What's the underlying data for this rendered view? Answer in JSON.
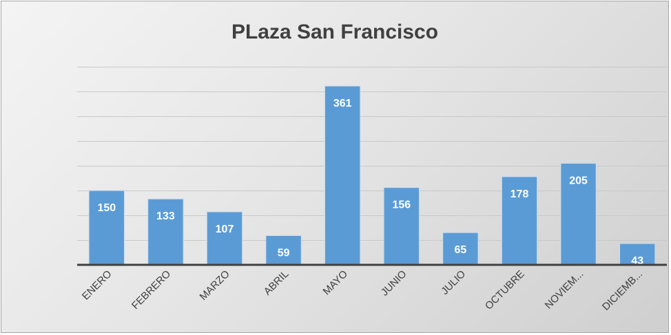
{
  "chart_data": {
    "type": "bar",
    "title": "PLaza San Francisco",
    "xlabel": "",
    "ylabel": "",
    "categories": [
      "ENERO",
      "FEBRERO",
      "MARZO",
      "ABRIL",
      "MAYO",
      "JUNIO",
      "JULIO",
      "OCTUBRE",
      "NOVIEM...",
      "DICIEMB..."
    ],
    "values": [
      150,
      133,
      107,
      59,
      361,
      156,
      65,
      178,
      205,
      43
    ],
    "ylim": [
      0,
      400
    ],
    "y_gridline_step": 50,
    "grid": true,
    "y_tick_labels_shown": false,
    "legend": "none",
    "data_labels": "inside-end",
    "colors": {
      "bar": "#5b9bd5",
      "bar_edge": "#c9dcee",
      "label": "#ffffff",
      "gridline": "#c8c8c8",
      "axis": "#404040",
      "text": "#404040"
    }
  }
}
